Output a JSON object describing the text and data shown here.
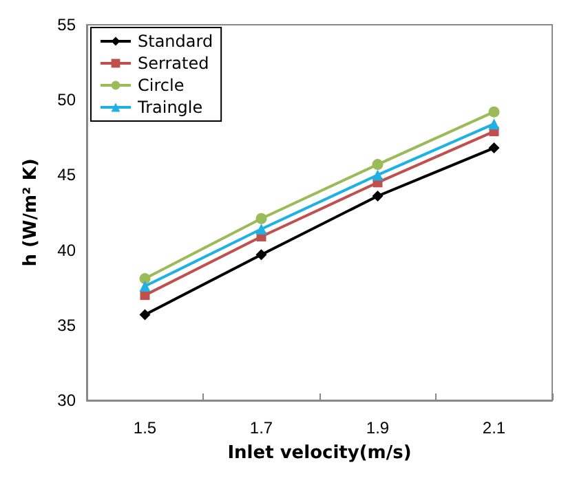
{
  "chart_data": {
    "type": "line",
    "xlabel": "Inlet velocity(m/s)",
    "ylabel": "h (W/m² K)",
    "categories": [
      "1.5",
      "1.7",
      "1.9",
      "2.1"
    ],
    "ylim": [
      30,
      55
    ],
    "yticks": [
      30,
      35,
      40,
      45,
      50,
      55
    ],
    "grid": false,
    "legend": "top left",
    "series": [
      {
        "name": "Standard",
        "color": "#000000",
        "marker": "diamond",
        "values": [
          35.7,
          39.7,
          43.6,
          46.8
        ]
      },
      {
        "name": "Serrated",
        "color": "#c0504d",
        "marker": "square",
        "values": [
          37.0,
          40.9,
          44.5,
          47.9
        ]
      },
      {
        "name": "Circle",
        "color": "#9bbb59",
        "marker": "circle",
        "values": [
          38.1,
          42.1,
          45.7,
          49.2
        ]
      },
      {
        "name": "Traingle",
        "color": "#1fb0e6",
        "marker": "triangle",
        "values": [
          37.6,
          41.4,
          45.0,
          48.4
        ]
      }
    ]
  }
}
